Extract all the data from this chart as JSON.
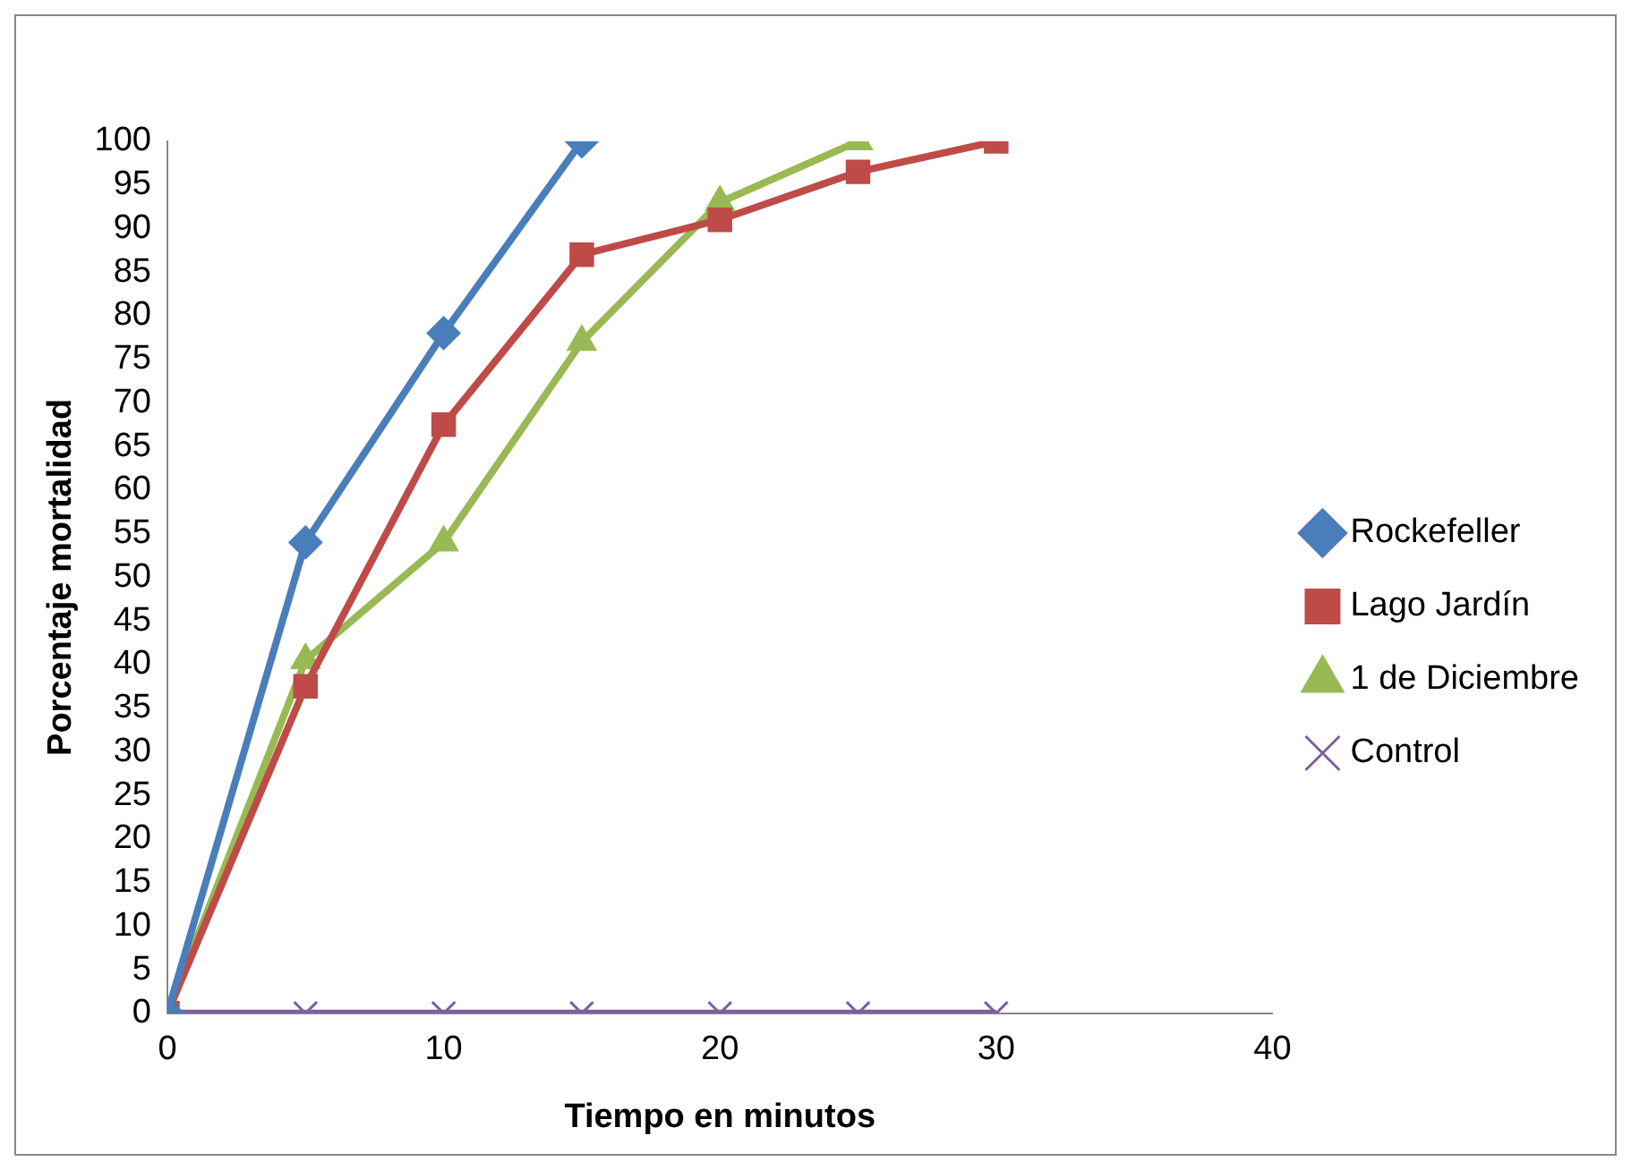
{
  "chart_data": {
    "type": "line",
    "xlabel": "Tiempo en minutos",
    "ylabel": "Porcentaje mortalidad",
    "xlim": [
      0,
      40
    ],
    "xticks": [
      0,
      10,
      20,
      30,
      40
    ],
    "ylim": [
      0,
      100
    ],
    "yticks": [
      0,
      5,
      10,
      15,
      20,
      25,
      30,
      35,
      40,
      45,
      50,
      55,
      60,
      65,
      70,
      75,
      80,
      85,
      90,
      95,
      100
    ],
    "grid": false,
    "legend": "right",
    "line_style": "solid",
    "series": [
      {
        "name": "Rockefeller",
        "color": "#4a7ebb",
        "marker": "diamond",
        "x": [
          0,
          5,
          10,
          15
        ],
        "values": [
          0,
          54,
          78,
          100
        ]
      },
      {
        "name": "Lago Jardín",
        "color": "#be4b48",
        "marker": "square",
        "x": [
          0,
          5,
          10,
          15,
          20,
          25,
          30
        ],
        "values": [
          0,
          37.5,
          67.5,
          87,
          91,
          96.5,
          100
        ]
      },
      {
        "name": "1 de Diciembre",
        "color": "#98b954",
        "marker": "triangle",
        "x": [
          0,
          5,
          10,
          15,
          20,
          25
        ],
        "values": [
          0,
          40.5,
          54,
          77,
          93,
          100
        ]
      },
      {
        "name": "Control",
        "color": "#7d60a0",
        "marker": "cross",
        "x": [
          0,
          5,
          10,
          15,
          20,
          25,
          30
        ],
        "values": [
          0,
          0,
          0,
          0,
          0,
          0,
          0
        ]
      }
    ]
  }
}
